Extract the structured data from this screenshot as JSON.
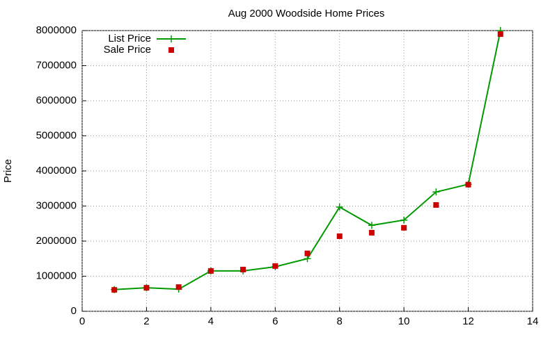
{
  "chart_data": {
    "type": "line",
    "title": "Aug 2000 Woodside Home Prices",
    "y_label": "Price",
    "x": [
      1,
      2,
      3,
      4,
      5,
      6,
      7,
      8,
      9,
      10,
      11,
      12,
      13
    ],
    "series": [
      {
        "name": "List Price",
        "color": "#009900",
        "style": "line",
        "marker": "plus",
        "values": [
          620000,
          670000,
          630000,
          1150000,
          1150000,
          1270000,
          1500000,
          2970000,
          2450000,
          2600000,
          3400000,
          3620000,
          8000000
        ]
      },
      {
        "name": "Sale Price",
        "color": "#cc0000",
        "style": "points",
        "marker": "square",
        "values": [
          610000,
          670000,
          690000,
          1150000,
          1190000,
          1290000,
          1650000,
          2140000,
          2240000,
          2380000,
          3030000,
          3610000,
          7900000
        ]
      }
    ],
    "xlim": [
      0,
      14
    ],
    "xticks": [
      0,
      2,
      4,
      6,
      8,
      10,
      12,
      14
    ],
    "ylim": [
      0,
      8000000
    ],
    "yticks": [
      0,
      1000000,
      2000000,
      3000000,
      4000000,
      5000000,
      6000000,
      7000000,
      8000000
    ],
    "grid": true,
    "legend": "top-left"
  }
}
